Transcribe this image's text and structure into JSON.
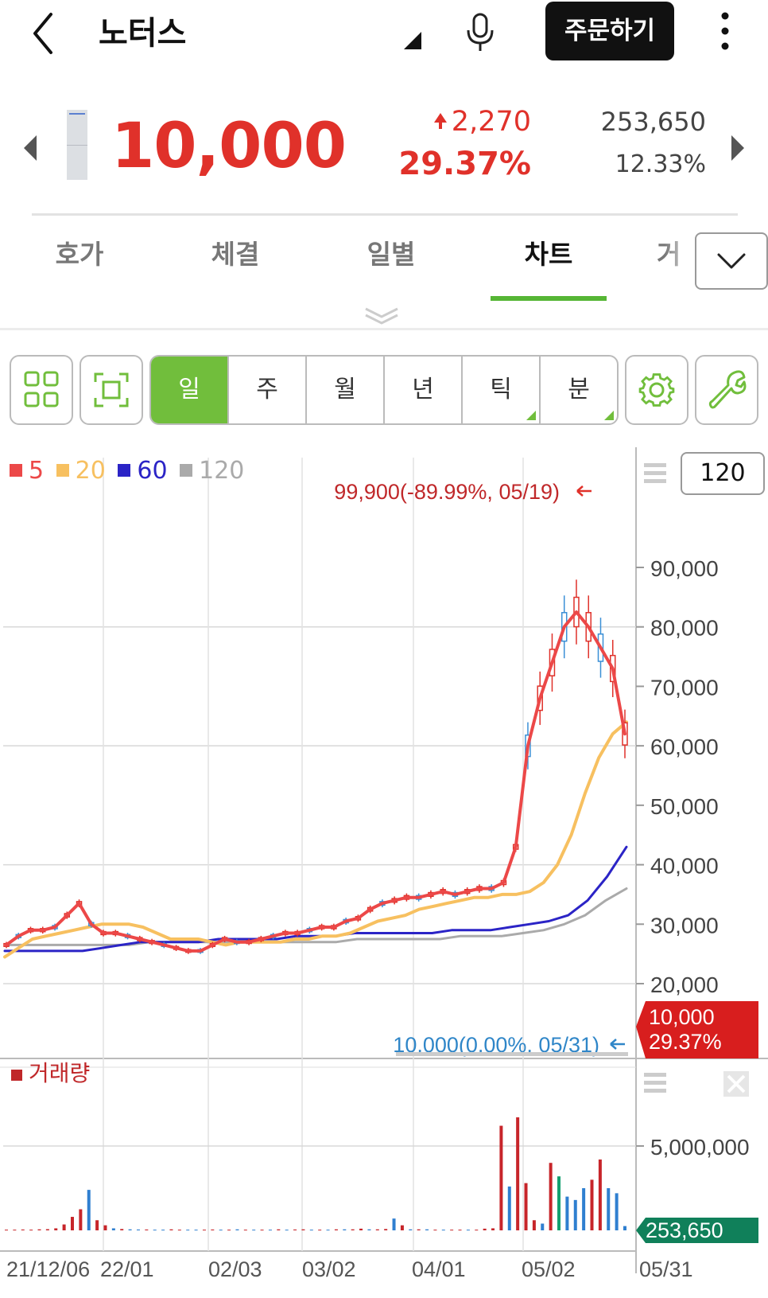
{
  "header": {
    "title": "노터스",
    "order_label": "주문하기"
  },
  "quote": {
    "price": "10,000",
    "change": "2,270",
    "change_rate": "29.37%",
    "volume": "253,650",
    "volume_rate": "12.33%",
    "direction": "up"
  },
  "tabs": [
    {
      "label": "호가",
      "active": false
    },
    {
      "label": "체결",
      "active": false
    },
    {
      "label": "일별",
      "active": false
    },
    {
      "label": "차트",
      "active": true
    },
    {
      "label": "거",
      "active": false
    }
  ],
  "toolbar": {
    "periods": [
      {
        "label": "일",
        "active": true
      },
      {
        "label": "주",
        "active": false
      },
      {
        "label": "월",
        "active": false
      },
      {
        "label": "년",
        "active": false
      },
      {
        "label": "틱",
        "active": false,
        "has_menu": true
      },
      {
        "label": "분",
        "active": false,
        "has_menu": true
      }
    ],
    "icons": [
      "layout-grid-icon",
      "fullscreen-icon",
      "gear-icon",
      "wrench-icon"
    ]
  },
  "colors": {
    "up": "#e0312a",
    "accent_green": "#71be3c",
    "ma5": "#ec4848",
    "ma20": "#f7c060",
    "ma60": "#2b24c6",
    "ma120": "#aaaaaa",
    "volume_badge": "#10805a"
  },
  "chart_data": [
    {
      "type": "candlestick",
      "legend": [
        {
          "label": "5",
          "color": "#ec4848"
        },
        {
          "label": "20",
          "color": "#f7c060"
        },
        {
          "label": "60",
          "color": "#2b24c6"
        },
        {
          "label": "120",
          "color": "#aaaaaa"
        }
      ],
      "count": "120",
      "y_ticks": [
        "90,000",
        "80,000",
        "70,000",
        "60,000",
        "50,000",
        "40,000",
        "30,000",
        "20,000"
      ],
      "y_tick_values": [
        90000,
        80000,
        70000,
        60000,
        50000,
        40000,
        30000,
        20000
      ],
      "ylim": [
        13000,
        100000
      ],
      "x_ticks": [
        "21/12/06",
        "22/01",
        "02/03",
        "03/02",
        "04/01",
        "05/02",
        "05/31"
      ],
      "high_annotation": "99,900(-89.99%, 05/19)",
      "low_annotation": "10,000(0.00%, 05/31)",
      "current_price": "10,000",
      "current_rate": "29.37%",
      "ma5": [
        26500,
        28000,
        29000,
        29000,
        29500,
        31500,
        33500,
        30000,
        28500,
        28500,
        28000,
        27500,
        27000,
        26500,
        26000,
        25500,
        25500,
        26500,
        27500,
        27000,
        27000,
        27500,
        28000,
        28500,
        28500,
        29000,
        29500,
        29500,
        30500,
        31000,
        32500,
        33500,
        34000,
        34500,
        34500,
        35000,
        35500,
        35000,
        35500,
        36000,
        36000,
        37000,
        43000,
        60000,
        68000,
        74000,
        80000,
        82500,
        80000,
        76500,
        73000,
        62000
      ],
      "ma20": [
        24500,
        26000,
        27500,
        28000,
        28500,
        29000,
        29500,
        30000,
        30000,
        30000,
        29500,
        28500,
        27500,
        27500,
        27500,
        27000,
        26500,
        27000,
        27000,
        27000,
        27000,
        27500,
        27500,
        28000,
        28000,
        28500,
        29500,
        30500,
        31000,
        31500,
        32500,
        33000,
        33500,
        34000,
        34500,
        34500,
        35000,
        35000,
        35500,
        37000,
        40000,
        45000,
        52000,
        58000,
        62000,
        64000
      ],
      "ma60": [
        25500,
        25500,
        25500,
        25500,
        25500,
        26000,
        26500,
        27000,
        27000,
        27000,
        27000,
        27500,
        27500,
        27500,
        27500,
        28000,
        28000,
        28000,
        28500,
        28500,
        28500,
        28500,
        28500,
        29000,
        29000,
        29000,
        29500,
        30000,
        30500,
        31500,
        34000,
        38000,
        43000
      ],
      "ma120": [
        26500,
        26500,
        26500,
        26500,
        26500,
        26500,
        26500,
        27000,
        27000,
        27000,
        27000,
        27000,
        27000,
        27000,
        27000,
        27000,
        27000,
        27500,
        27500,
        27500,
        27500,
        27500,
        28000,
        28000,
        28000,
        28500,
        29000,
        30000,
        31500,
        34000,
        36000
      ]
    },
    {
      "type": "bar",
      "title": "거래량",
      "y_ticks": [
        "5,000,000"
      ],
      "y_tick_values": [
        5000000
      ],
      "ylim": [
        0,
        7200000
      ],
      "current_volume": "253,650",
      "values": [
        40000,
        40000,
        50000,
        40000,
        60000,
        70000,
        120000,
        350000,
        800000,
        1250000,
        2400000,
        600000,
        300000,
        120000,
        80000,
        60000,
        50000,
        50000,
        40000,
        40000,
        60000,
        40000,
        40000,
        40000,
        40000,
        50000,
        40000,
        40000,
        60000,
        40000,
        40000,
        40000,
        40000,
        60000,
        40000,
        50000,
        60000,
        40000,
        40000,
        40000,
        60000,
        60000,
        60000,
        100000,
        60000,
        60000,
        80000,
        700000,
        300000,
        60000,
        60000,
        60000,
        40000,
        40000,
        40000,
        40000,
        40000,
        40000,
        100000,
        120000,
        6200000,
        2600000,
        6700000,
        2800000,
        600000,
        400000,
        4000000,
        3200000,
        2000000,
        1800000,
        2500000,
        3000000,
        4200000,
        2500000,
        2200000,
        253650
      ],
      "colors": [
        "r",
        "r",
        "r",
        "r",
        "r",
        "r",
        "r",
        "r",
        "r",
        "r",
        "b",
        "r",
        "r",
        "b",
        "r",
        "b",
        "b",
        "r",
        "b",
        "b",
        "r",
        "r",
        "b",
        "b",
        "r",
        "r",
        "b",
        "r",
        "b",
        "r",
        "b",
        "r",
        "b",
        "r",
        "b",
        "r",
        "r",
        "b",
        "r",
        "b",
        "r",
        "b",
        "r",
        "r",
        "b",
        "r",
        "r",
        "b",
        "r",
        "b",
        "r",
        "b",
        "r",
        "b",
        "r",
        "r",
        "b",
        "r",
        "r",
        "r",
        "r",
        "b",
        "r",
        "r",
        "r",
        "b",
        "r",
        "g",
        "b",
        "b",
        "b",
        "r",
        "r",
        "b",
        "b",
        "b"
      ]
    }
  ]
}
